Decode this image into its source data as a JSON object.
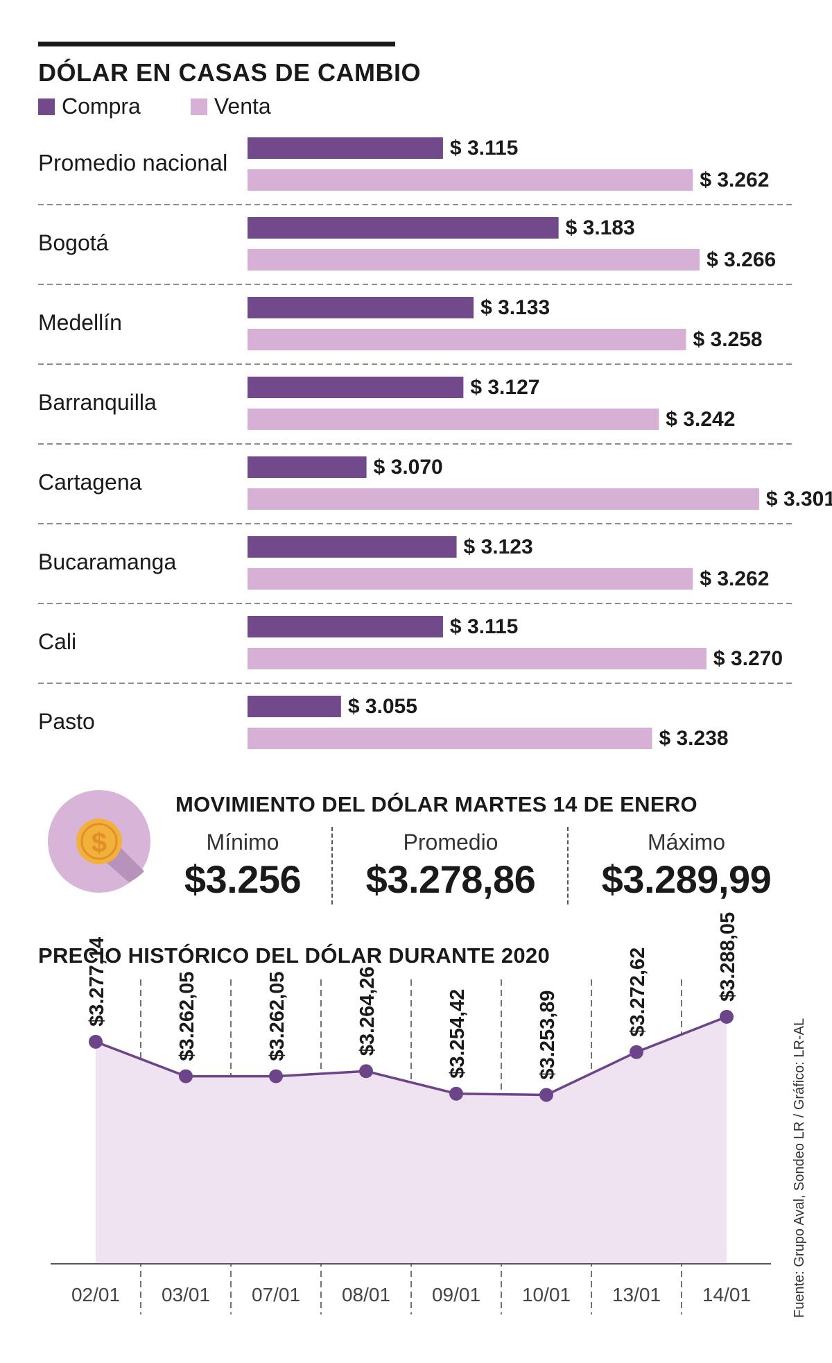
{
  "title": "DÓLAR EN CASAS DE CAMBIO",
  "legend": {
    "compra": "Compra",
    "venta": "Venta"
  },
  "colors": {
    "compra": "#724a8c",
    "venta": "#d6b1d5",
    "area": "#efe3f2",
    "line": "#6b4489",
    "coin_circle": "#d7b4d8",
    "coin_shadow": "#b793bb",
    "coin": "#f2b13b"
  },
  "chart_data": [
    {
      "type": "bar",
      "title": "DÓLAR EN CASAS DE CAMBIO",
      "categories": [
        "Promedio nacional",
        "Bogotá",
        "Medellín",
        "Barranquilla",
        "Cartagena",
        "Bucaramanga",
        "Cali",
        "Pasto"
      ],
      "series": [
        {
          "name": "Compra",
          "values": [
            3115,
            3183,
            3133,
            3127,
            3070,
            3123,
            3115,
            3055
          ],
          "labels": [
            "$ 3.115",
            "$ 3.183",
            "$ 3.133",
            "$ 3.127",
            "$ 3.070",
            "$ 3.123",
            "$ 3.115",
            "$ 3.055"
          ]
        },
        {
          "name": "Venta",
          "values": [
            3262,
            3266,
            3258,
            3242,
            3301,
            3262,
            3270,
            3238
          ],
          "labels": [
            "$ 3.262",
            "$ 3.266",
            "$ 3.258",
            "$ 3.242",
            "$ 3.301",
            "$ 3.262",
            "$ 3.270",
            "$ 3.238"
          ]
        }
      ],
      "xlim": [
        3000,
        3310
      ]
    },
    {
      "type": "area",
      "title": "PRECIO HISTÓRICO DEL DÓLAR DURANTE 2020",
      "x": [
        "02/01",
        "03/01",
        "07/01",
        "08/01",
        "09/01",
        "10/01",
        "13/01",
        "14/01"
      ],
      "values": [
        3277.14,
        3262.05,
        3262.05,
        3264.26,
        3254.42,
        3253.89,
        3272.62,
        3288.05
      ],
      "labels": [
        "$3.277,14",
        "$3.262,05",
        "$3.262,05",
        "$3.264,26",
        "$3.254,42",
        "$3.253,89",
        "$3.272,62",
        "$3.288,05"
      ],
      "ylim": [
        3180,
        3305
      ]
    }
  ],
  "movement": {
    "title": "MOVIMIENTO DEL DÓLAR MARTES 14 DE ENERO",
    "coin_icon": "dollar-coin-icon",
    "stats": [
      {
        "label": "Mínimo",
        "value": "$3.256"
      },
      {
        "label": "Promedio",
        "value": "$3.278,86"
      },
      {
        "label": "Máximo",
        "value": "$3.289,99"
      }
    ]
  },
  "history_title": "PRECIO HISTÓRICO DEL DÓLAR DURANTE 2020",
  "source": "Fuente: Grupo Aval, Sondeo LR / Gráfico: LR-AL"
}
